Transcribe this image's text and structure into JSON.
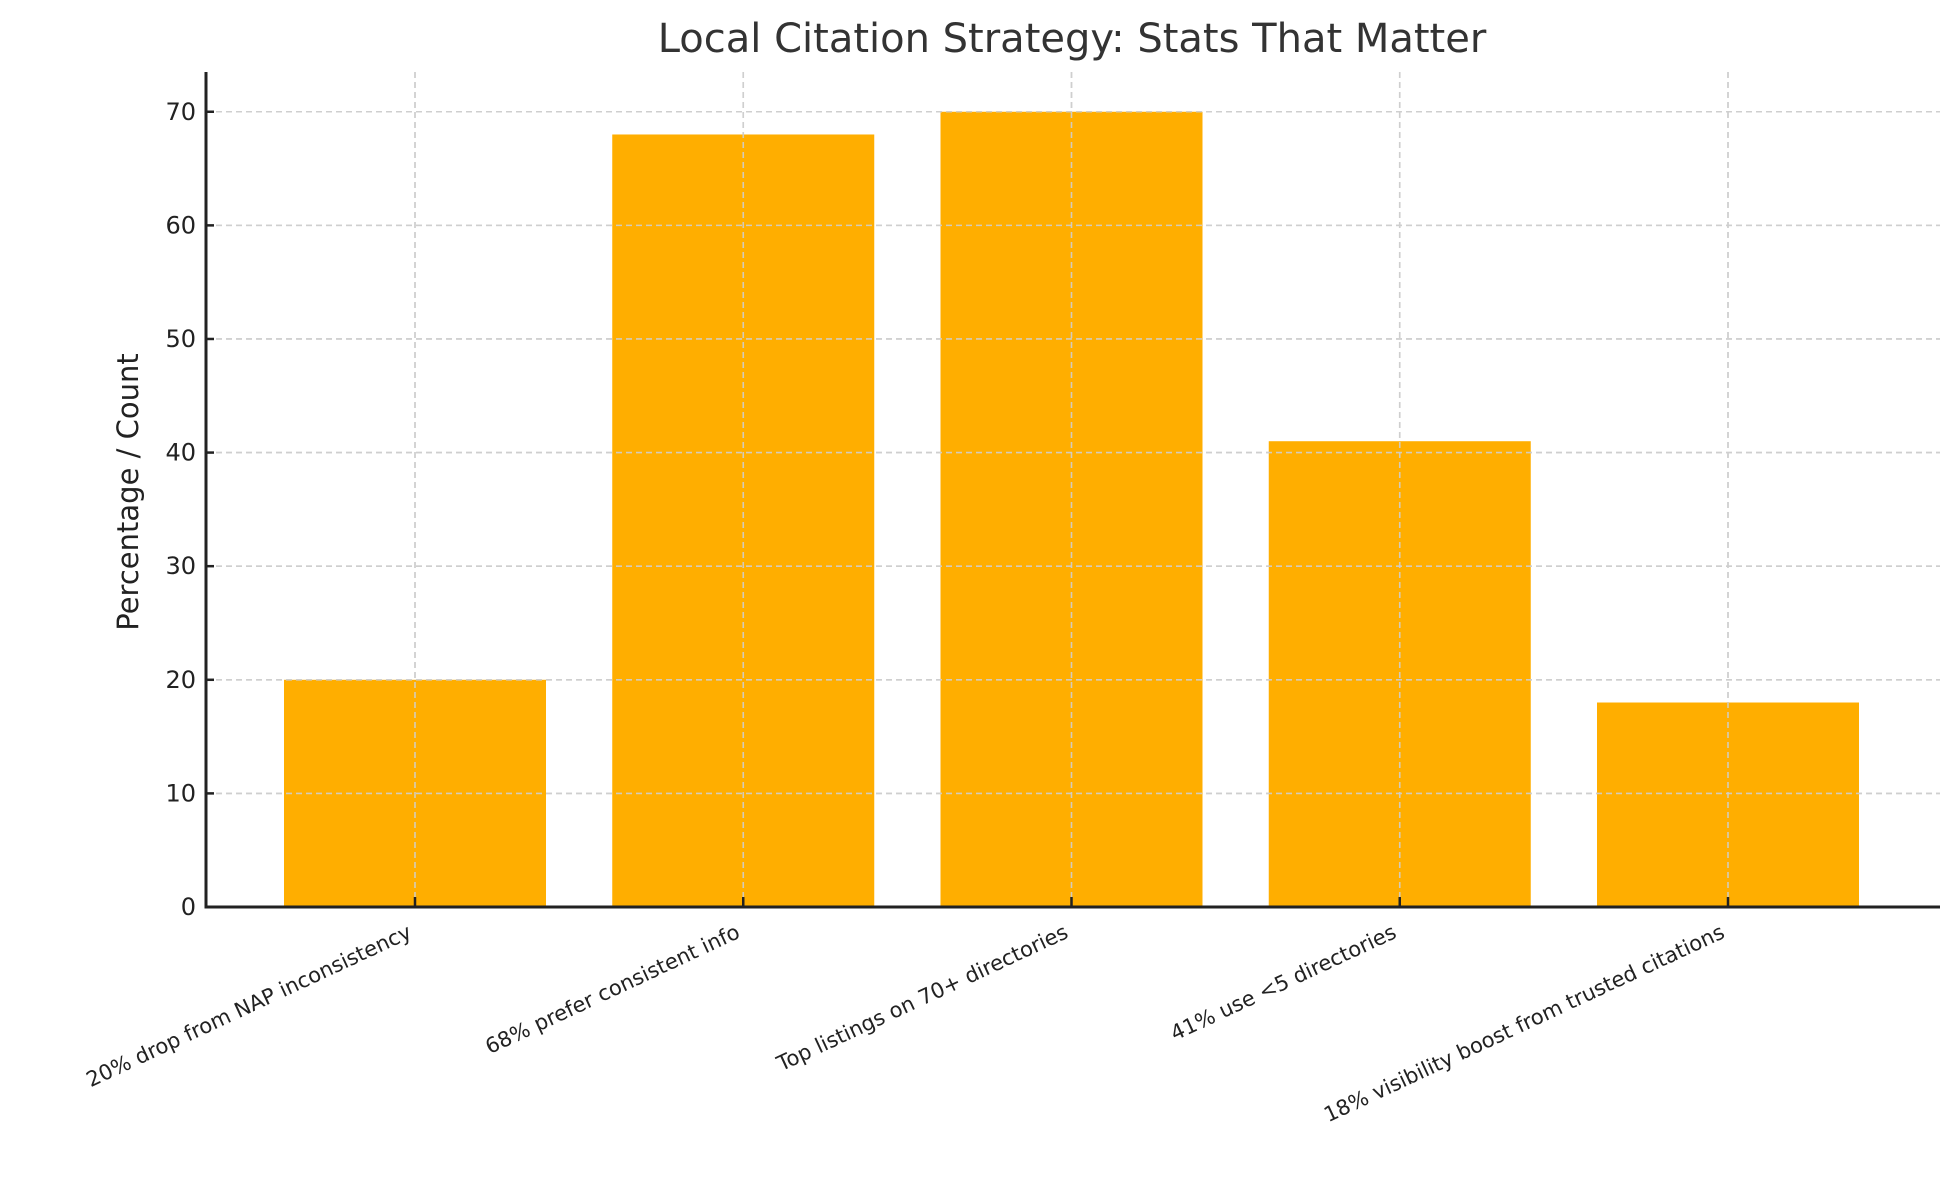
{
  "chart_data": {
    "type": "bar",
    "title": "Local Citation Strategy: Stats That Matter",
    "xlabel": "",
    "ylabel": "Percentage / Count",
    "categories": [
      "20% drop from NAP inconsistency",
      "68% prefer consistent info",
      "Top listings on 70+ directories",
      "41% use <5 directories",
      "18% visibility boost from trusted citations"
    ],
    "values": [
      20,
      68,
      70,
      41,
      18
    ],
    "ylim": [
      0,
      73.5
    ],
    "yticks": [
      0,
      10,
      20,
      30,
      40,
      50,
      60,
      70
    ],
    "grid": true,
    "grid_style": "dashed",
    "legend": null,
    "bar_color": "#FFAE00",
    "xtick_rotation": 25
  }
}
